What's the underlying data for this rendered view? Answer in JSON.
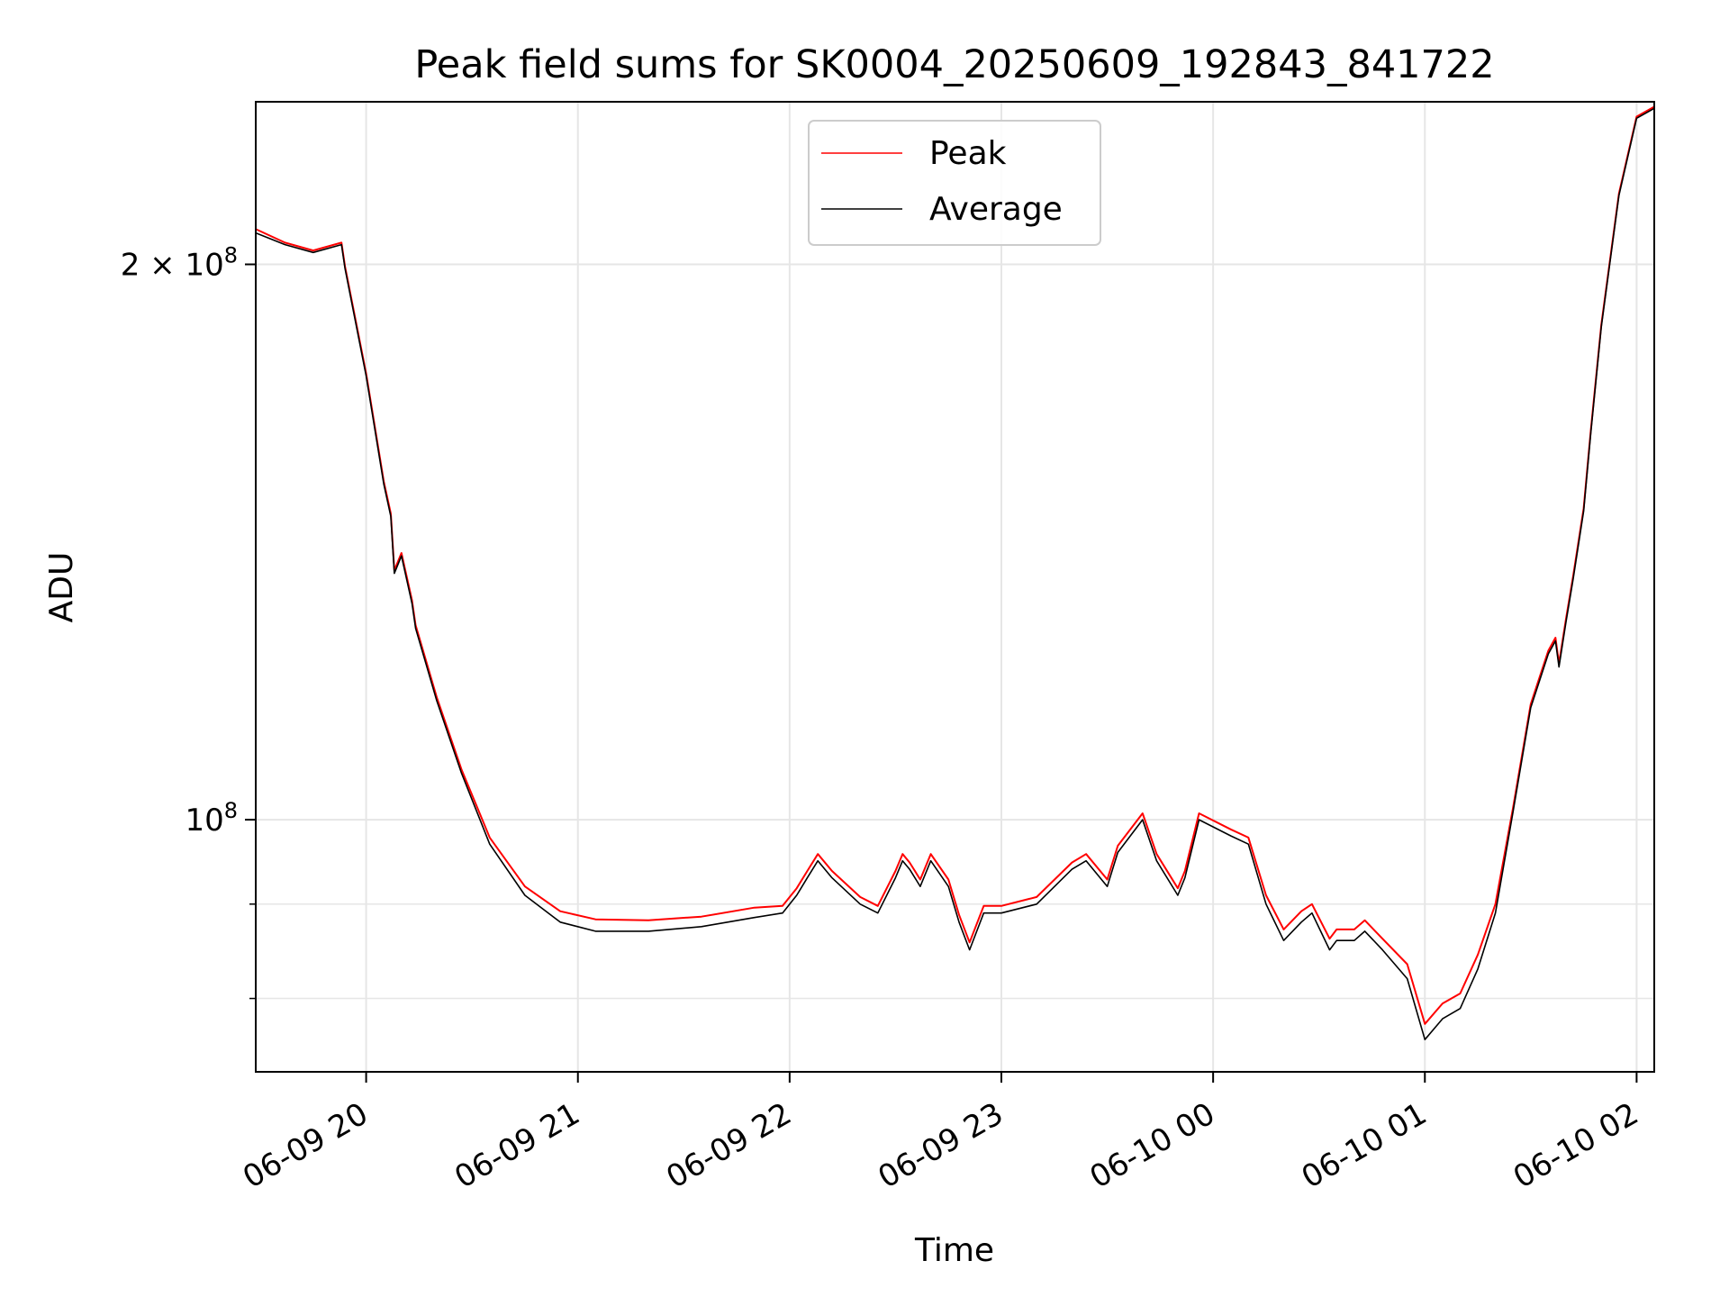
{
  "chart_data": {
    "type": "line",
    "title": "Peak field sums for SK0004_20250609_192843_841722",
    "xlabel": "Time",
    "ylabel": "ADU",
    "yscale": "log",
    "xlim": [
      "2025-06-09 19:28:43",
      "2025-06-10 02:05:00"
    ],
    "ylim": [
      73000000,
      245000000
    ],
    "x_ticks": [
      "06-09 20",
      "06-09 21",
      "06-09 22",
      "06-09 23",
      "06-10 00",
      "06-10 01",
      "06-10 02"
    ],
    "y_major_ticks": [
      {
        "value": 100000000,
        "label_base": "10",
        "label_exp": "8"
      },
      {
        "value": 200000000,
        "label_base": "2 × 10",
        "label_exp": "8"
      }
    ],
    "y_minor_ticks": [
      80000000,
      90000000,
      300000000
    ],
    "grid": true,
    "legend_position": "upper center",
    "series": [
      {
        "name": "Average",
        "color": "#000000",
        "x": [
          "2025-06-09 19:28:43",
          "2025-06-09 19:37",
          "2025-06-09 19:45",
          "2025-06-09 19:53",
          "2025-06-09 19:54",
          "2025-06-09 20:00",
          "2025-06-09 20:05",
          "2025-06-09 20:07",
          "2025-06-09 20:08",
          "2025-06-09 20:10",
          "2025-06-09 20:13",
          "2025-06-09 20:14",
          "2025-06-09 20:20",
          "2025-06-09 20:27",
          "2025-06-09 20:35",
          "2025-06-09 20:45",
          "2025-06-09 20:55",
          "2025-06-09 21:05",
          "2025-06-09 21:20",
          "2025-06-09 21:35",
          "2025-06-09 21:50",
          "2025-06-09 21:58",
          "2025-06-09 22:02",
          "2025-06-09 22:05",
          "2025-06-09 22:08",
          "2025-06-09 22:12",
          "2025-06-09 22:20",
          "2025-06-09 22:25",
          "2025-06-09 22:30",
          "2025-06-09 22:32",
          "2025-06-09 22:34",
          "2025-06-09 22:37",
          "2025-06-09 22:40",
          "2025-06-09 22:45",
          "2025-06-09 22:48",
          "2025-06-09 22:51",
          "2025-06-09 22:55",
          "2025-06-09 23:00",
          "2025-06-09 23:10",
          "2025-06-09 23:20",
          "2025-06-09 23:24",
          "2025-06-09 23:30",
          "2025-06-09 23:33",
          "2025-06-09 23:40",
          "2025-06-09 23:44",
          "2025-06-09 23:50",
          "2025-06-09 23:52",
          "2025-06-09 23:56",
          "2025-06-10 00:05",
          "2025-06-10 00:10",
          "2025-06-10 00:15",
          "2025-06-10 00:20",
          "2025-06-10 00:25",
          "2025-06-10 00:28",
          "2025-06-10 00:33",
          "2025-06-10 00:35",
          "2025-06-10 00:40",
          "2025-06-10 00:43",
          "2025-06-10 00:48",
          "2025-06-10 00:55",
          "2025-06-10 01:00",
          "2025-06-10 01:05",
          "2025-06-10 01:10",
          "2025-06-10 01:15",
          "2025-06-10 01:20",
          "2025-06-10 01:25",
          "2025-06-10 01:30",
          "2025-06-10 01:35",
          "2025-06-10 01:37",
          "2025-06-10 01:38",
          "2025-06-10 01:40",
          "2025-06-10 01:42",
          "2025-06-10 01:45",
          "2025-06-10 01:47",
          "2025-06-10 01:50",
          "2025-06-10 01:55",
          "2025-06-10 02:00",
          "2025-06-10 02:05"
        ],
        "y": [
          208000000,
          205000000,
          203000000,
          205000000,
          199000000,
          174000000,
          152000000,
          146000000,
          136000000,
          139000000,
          131000000,
          127000000,
          116000000,
          106000000,
          97000000,
          91000000,
          88000000,
          87000000,
          87000000,
          87500000,
          88500000,
          89000000,
          91000000,
          93000000,
          95000000,
          93000000,
          90000000,
          89000000,
          93000000,
          95000000,
          94000000,
          92000000,
          95000000,
          92000000,
          88000000,
          85000000,
          89000000,
          89000000,
          90000000,
          94000000,
          95000000,
          92000000,
          96000000,
          100000000,
          95000000,
          91000000,
          93000000,
          100000000,
          98000000,
          97000000,
          90000000,
          86000000,
          88000000,
          89000000,
          85000000,
          86000000,
          86000000,
          87000000,
          85000000,
          82000000,
          76000000,
          78000000,
          79000000,
          83000000,
          89000000,
          101000000,
          115000000,
          123000000,
          125000000,
          121000000,
          128000000,
          135000000,
          147000000,
          162000000,
          185000000,
          218000000,
          240000000,
          243000000
        ]
      },
      {
        "name": "Peak",
        "color": "#ff0000",
        "x": [
          "2025-06-09 19:28:43",
          "2025-06-09 19:37",
          "2025-06-09 19:45",
          "2025-06-09 19:53",
          "2025-06-09 19:54",
          "2025-06-09 20:00",
          "2025-06-09 20:05",
          "2025-06-09 20:07",
          "2025-06-09 20:08",
          "2025-06-09 20:10",
          "2025-06-09 20:13",
          "2025-06-09 20:14",
          "2025-06-09 20:20",
          "2025-06-09 20:27",
          "2025-06-09 20:35",
          "2025-06-09 20:45",
          "2025-06-09 20:55",
          "2025-06-09 21:05",
          "2025-06-09 21:20",
          "2025-06-09 21:35",
          "2025-06-09 21:50",
          "2025-06-09 21:58",
          "2025-06-09 22:02",
          "2025-06-09 22:05",
          "2025-06-09 22:08",
          "2025-06-09 22:12",
          "2025-06-09 22:20",
          "2025-06-09 22:25",
          "2025-06-09 22:30",
          "2025-06-09 22:32",
          "2025-06-09 22:34",
          "2025-06-09 22:37",
          "2025-06-09 22:40",
          "2025-06-09 22:45",
          "2025-06-09 22:48",
          "2025-06-09 22:51",
          "2025-06-09 22:55",
          "2025-06-09 23:00",
          "2025-06-09 23:10",
          "2025-06-09 23:20",
          "2025-06-09 23:24",
          "2025-06-09 23:30",
          "2025-06-09 23:33",
          "2025-06-09 23:40",
          "2025-06-09 23:44",
          "2025-06-09 23:50",
          "2025-06-09 23:52",
          "2025-06-09 23:56",
          "2025-06-10 00:05",
          "2025-06-10 00:10",
          "2025-06-10 00:15",
          "2025-06-10 00:20",
          "2025-06-10 00:25",
          "2025-06-10 00:28",
          "2025-06-10 00:33",
          "2025-06-10 00:35",
          "2025-06-10 00:40",
          "2025-06-10 00:43",
          "2025-06-10 00:48",
          "2025-06-10 00:55",
          "2025-06-10 01:00",
          "2025-06-10 01:05",
          "2025-06-10 01:10",
          "2025-06-10 01:15",
          "2025-06-10 01:20",
          "2025-06-10 01:25",
          "2025-06-10 01:30",
          "2025-06-10 01:35",
          "2025-06-10 01:37",
          "2025-06-10 01:38",
          "2025-06-10 01:40",
          "2025-06-10 01:42",
          "2025-06-10 01:45",
          "2025-06-10 01:47",
          "2025-06-10 01:50",
          "2025-06-10 01:55",
          "2025-06-10 02:00",
          "2025-06-10 02:05"
        ],
        "y": [
          209000000,
          205500000,
          203500000,
          205500000,
          199500000,
          174500000,
          152500000,
          146500000,
          136500000,
          139500000,
          131500000,
          127500000,
          116500000,
          106500000,
          97800000,
          92000000,
          89200000,
          88300000,
          88200000,
          88600000,
          89600000,
          89800000,
          91800000,
          93800000,
          95800000,
          93800000,
          90800000,
          89800000,
          93800000,
          95800000,
          94800000,
          92800000,
          95800000,
          92800000,
          88800000,
          85800000,
          89800000,
          89800000,
          90800000,
          94800000,
          95800000,
          92800000,
          96800000,
          100800000,
          95800000,
          91800000,
          93800000,
          100800000,
          98800000,
          97800000,
          91000000,
          87200000,
          89200000,
          90000000,
          86200000,
          87200000,
          87200000,
          88200000,
          86200000,
          83500000,
          77500000,
          79500000,
          80500000,
          84500000,
          90000000,
          101500000,
          115500000,
          123500000,
          125500000,
          121500000,
          128500000,
          135500000,
          147500000,
          162500000,
          185500000,
          218500000,
          240500000,
          243500000
        ]
      }
    ]
  }
}
